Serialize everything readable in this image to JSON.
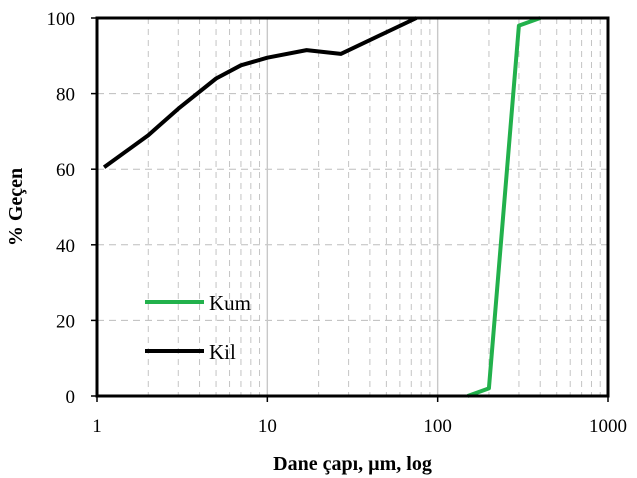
{
  "chart_data": {
    "type": "line",
    "xlabel": "Dane çapı, µm, log",
    "ylabel": "% Geçen",
    "xscale": "log",
    "xlim": [
      1,
      1000
    ],
    "ylim": [
      0,
      100
    ],
    "x_ticks": [
      1,
      10,
      100,
      1000
    ],
    "x_tick_labels": [
      "1",
      "10",
      "100",
      "1000"
    ],
    "y_ticks": [
      0,
      20,
      40,
      60,
      80,
      100
    ],
    "y_tick_labels": [
      "0",
      "20",
      "40",
      "60",
      "80",
      "100"
    ],
    "grid": true,
    "legend_position": "bottom-left",
    "series": [
      {
        "name": "Kum",
        "color": "#22b14c",
        "x": [
          150,
          200,
          300,
          400
        ],
        "y": [
          0,
          2,
          98,
          100
        ]
      },
      {
        "name": "Kil",
        "color": "#000000",
        "x": [
          1.1,
          2,
          3,
          5,
          7,
          10,
          17,
          27,
          75
        ],
        "y": [
          60.5,
          69,
          76,
          84,
          87.5,
          89.5,
          91.5,
          90.5,
          100
        ]
      }
    ]
  }
}
